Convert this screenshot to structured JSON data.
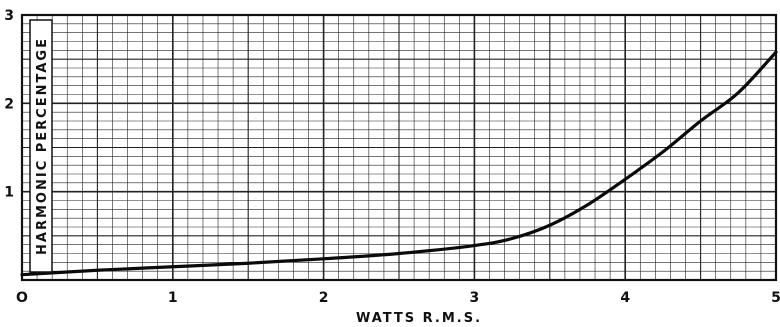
{
  "chart_data": {
    "type": "line",
    "xlabel": "WATTS R.M.S.",
    "ylabel": "HARMONIC PERCENTAGE",
    "xlim": [
      0,
      5
    ],
    "ylim": [
      0,
      3
    ],
    "x_ticks": [
      "O",
      "1",
      "2",
      "3",
      "4",
      "5"
    ],
    "y_ticks": [
      "1",
      "2",
      "3"
    ],
    "grid": true,
    "series": [
      {
        "x": [
          0,
          0.5,
          1,
          1.5,
          2,
          2.5,
          3,
          3.25,
          3.5,
          3.75,
          4,
          4.25,
          4.5,
          4.75,
          5
        ],
        "y": [
          0.06,
          0.11,
          0.15,
          0.19,
          0.24,
          0.3,
          0.39,
          0.47,
          0.62,
          0.85,
          1.14,
          1.45,
          1.8,
          2.12,
          2.58
        ]
      }
    ]
  }
}
